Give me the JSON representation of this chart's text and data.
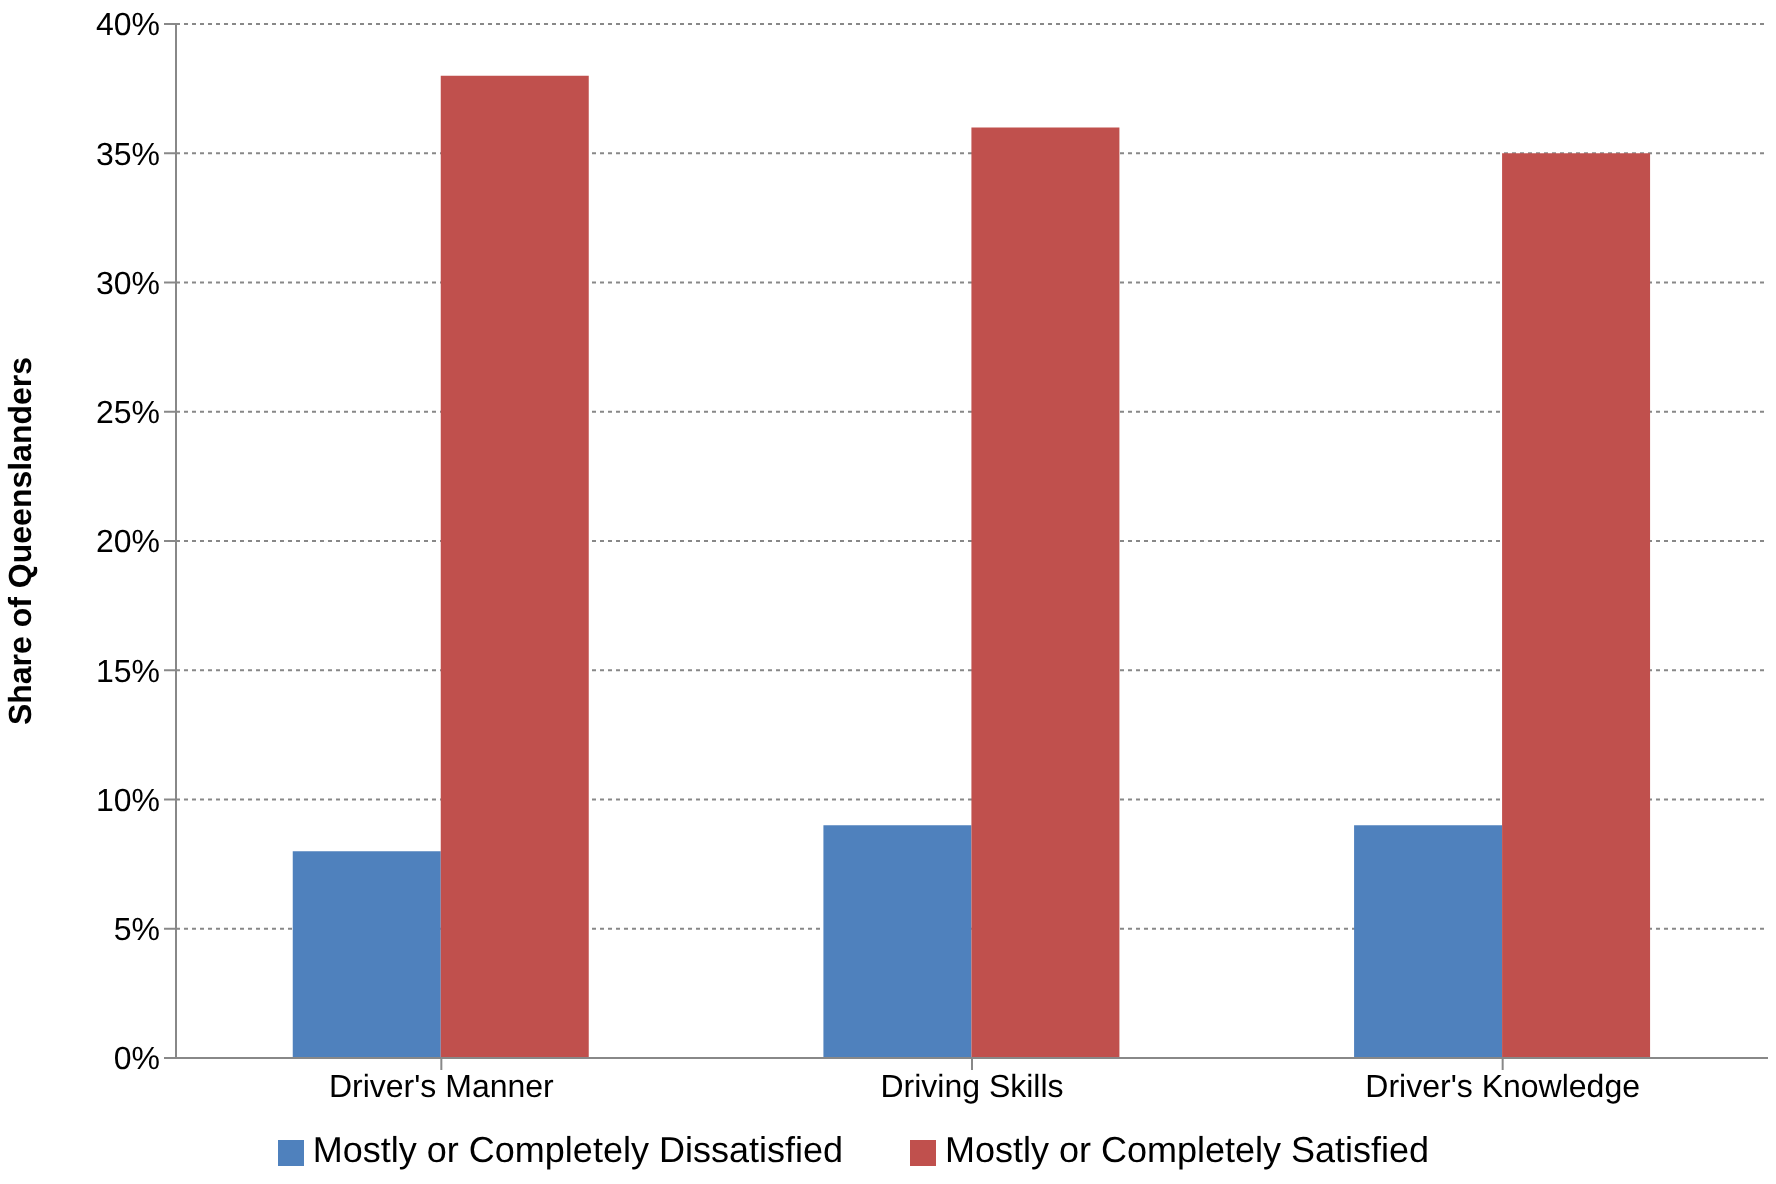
{
  "chart_data": {
    "type": "bar",
    "ylabel": "Share of Queenslanders",
    "categories": [
      "Driver's Manner",
      "Driving Skills",
      "Driver's Knowledge"
    ],
    "series": [
      {
        "name": "Mostly or Completely Dissatisfied",
        "color": "#4f81bd",
        "values": [
          8,
          9,
          9
        ]
      },
      {
        "name": "Mostly or Completely Satisfied",
        "color": "#c0504d",
        "values": [
          38,
          36,
          35
        ]
      }
    ],
    "ylim": [
      0,
      40
    ],
    "yticks": [
      {
        "value": 0,
        "label": "0%"
      },
      {
        "value": 5,
        "label": "5%"
      },
      {
        "value": 10,
        "label": "10%"
      },
      {
        "value": 15,
        "label": "15%"
      },
      {
        "value": 20,
        "label": "20%"
      },
      {
        "value": 25,
        "label": "25%"
      },
      {
        "value": 30,
        "label": "30%"
      },
      {
        "value": 35,
        "label": "35%"
      },
      {
        "value": 40,
        "label": "40%"
      }
    ],
    "grid": "y",
    "legend": "bottom"
  }
}
